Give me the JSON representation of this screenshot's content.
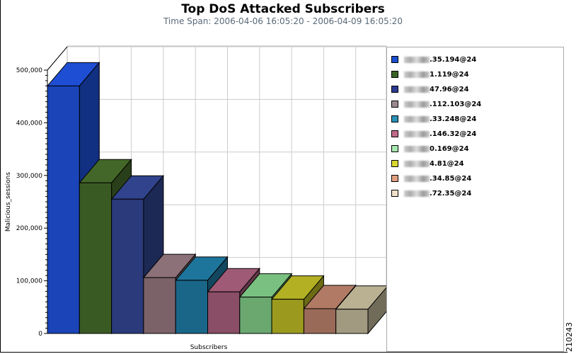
{
  "chart_data": {
    "type": "bar",
    "style": "3d",
    "title": "Top DoS Attacked Subscribers",
    "subtitle": "Time Span: 2006-04-06 16:05:20 - 2006-04-09 16:05:20",
    "xlabel": "Subscribers",
    "ylabel": "Malicious_sessions",
    "ylim": [
      0,
      500000
    ],
    "yticks": [
      "0",
      "100,000",
      "200,000",
      "300,000",
      "400,000",
      "500,000"
    ],
    "grid": true,
    "legend_position": "right",
    "series": [
      {
        "name": ".35.194@24",
        "value": 470000,
        "color": "#1a44b8",
        "legend_color": "#1c4ed0"
      },
      {
        "name": "1.119@24",
        "value": 286000,
        "color": "#3a5a23",
        "legend_color": "#3a6428"
      },
      {
        "name": "47.96@24",
        "value": 255000,
        "color": "#2a3a7a",
        "legend_color": "#2a3a90"
      },
      {
        "name": ".112.103@24",
        "value": 106000,
        "color": "#7a6268",
        "legend_color": "#9a8a90"
      },
      {
        "name": ".33.248@24",
        "value": 101000,
        "color": "#1a6688",
        "legend_color": "#2a90b8"
      },
      {
        "name": ".146.32@24",
        "value": 79000,
        "color": "#8a4e66",
        "legend_color": "#c06a8a"
      },
      {
        "name": "0.169@24",
        "value": 69000,
        "color": "#6aa870",
        "legend_color": "#a8e8b0"
      },
      {
        "name": "4.81@24",
        "value": 65000,
        "color": "#9c9a1e",
        "legend_color": "#d8d830"
      },
      {
        "name": ".34.85@24",
        "value": 47000,
        "color": "#9a6a58",
        "legend_color": "#e0a080"
      },
      {
        "name": ".72.35@24",
        "value": 46000,
        "color": "#a29a80",
        "legend_color": "#f0e0c8"
      }
    ]
  },
  "figure_id": "210243"
}
